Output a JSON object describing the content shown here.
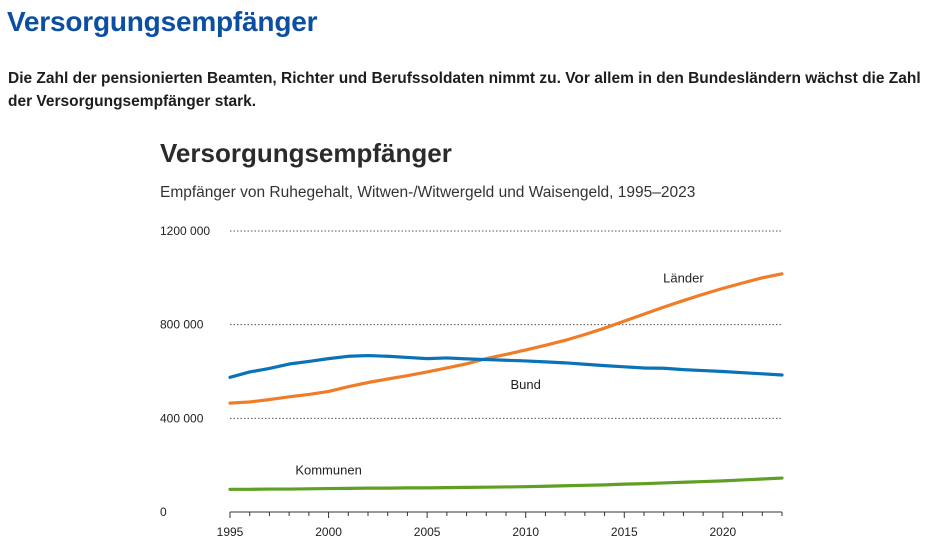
{
  "header": {
    "title": "Versorgungsempfänger",
    "intro": "Die Zahl der pensionierten Beamten, Richter und Berufssoldaten nimmt zu. Vor allem in den Bundesländern wächst die Zahl der Versorgungsempfänger stark."
  },
  "chart_data": {
    "type": "line",
    "title": "Versorgungsempfänger",
    "subtitle": "Empfänger von Ruhegehalt, Witwen-/Witwergeld und Waisengeld, 1995–2023",
    "xlabel": "",
    "ylabel": "",
    "xlim": [
      1995,
      2023
    ],
    "ylim": [
      0,
      1200000
    ],
    "grid": "horizontal-dotted",
    "x_ticks": [
      "1995",
      "2000",
      "2005",
      "2010",
      "2015",
      "2020"
    ],
    "y_ticks": [
      "0",
      "400 000",
      "800 000",
      "1200 000"
    ],
    "x": [
      1995,
      1996,
      1997,
      1998,
      1999,
      2000,
      2001,
      2002,
      2003,
      2004,
      2005,
      2006,
      2007,
      2008,
      2009,
      2010,
      2011,
      2012,
      2013,
      2014,
      2015,
      2016,
      2017,
      2018,
      2019,
      2020,
      2021,
      2022,
      2023
    ],
    "series": [
      {
        "name": "Länder",
        "color": "#f07c28",
        "label_year": 2018,
        "values": [
          465000,
          470000,
          480000,
          492000,
          502000,
          515000,
          535000,
          553000,
          568000,
          582000,
          598000,
          615000,
          633000,
          655000,
          673000,
          692000,
          712000,
          733000,
          758000,
          785000,
          815000,
          845000,
          875000,
          903000,
          930000,
          955000,
          978000,
          1000000,
          1017000
        ]
      },
      {
        "name": "Bund",
        "color": "#0a73b7",
        "label_year": 2010,
        "values": [
          575000,
          598000,
          613000,
          632000,
          643000,
          655000,
          665000,
          668000,
          665000,
          660000,
          655000,
          658000,
          654000,
          651000,
          648000,
          645000,
          641000,
          637000,
          631000,
          625000,
          620000,
          615000,
          614000,
          608000,
          604000,
          600000,
          595000,
          590000,
          585000
        ]
      },
      {
        "name": "Kommunen",
        "color": "#5f9f24",
        "label_year": 2000,
        "values": [
          97000,
          97000,
          98000,
          98000,
          99000,
          100000,
          101000,
          102000,
          102000,
          103000,
          103000,
          104000,
          105000,
          106000,
          107000,
          108000,
          110000,
          112000,
          114000,
          116000,
          119000,
          121000,
          124000,
          127000,
          130000,
          133000,
          137000,
          141000,
          145000
        ]
      }
    ]
  }
}
